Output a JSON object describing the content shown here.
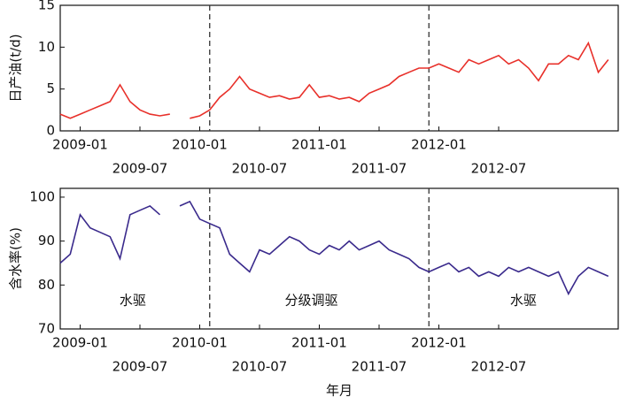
{
  "chart_data": [
    {
      "type": "line",
      "ylabel": "日产油(t/d)",
      "x": [
        "2008-11",
        "2008-12",
        "2009-01",
        "2009-02",
        "2009-03",
        "2009-04",
        "2009-05",
        "2009-06",
        "2009-07",
        "2009-08",
        "2009-09",
        "2009-10",
        "2009-11",
        "2009-12",
        "2010-01",
        "2010-02",
        "2010-03",
        "2010-04",
        "2010-05",
        "2010-06",
        "2010-07",
        "2010-08",
        "2010-09",
        "2010-10",
        "2010-11",
        "2010-12",
        "2011-01",
        "2011-02",
        "2011-03",
        "2011-04",
        "2011-05",
        "2011-06",
        "2011-07",
        "2011-08",
        "2011-09",
        "2011-10",
        "2011-11",
        "2011-12",
        "2012-01",
        "2012-02",
        "2012-03",
        "2012-04",
        "2012-05",
        "2012-06",
        "2012-07",
        "2012-08",
        "2012-09",
        "2012-10",
        "2012-11",
        "2012-12",
        "2013-01",
        "2013-02",
        "2013-03",
        "2013-04",
        "2013-05",
        "2013-06"
      ],
      "series": [
        {
          "color": "#e8302a",
          "values": [
            2.0,
            1.5,
            2.0,
            2.5,
            3.0,
            3.5,
            5.5,
            3.5,
            2.5,
            2.0,
            1.8,
            2.0,
            null,
            1.5,
            1.8,
            2.5,
            4.0,
            5.0,
            6.5,
            5.0,
            4.5,
            4.0,
            4.2,
            3.8,
            4.0,
            5.5,
            4.0,
            4.2,
            3.8,
            4.0,
            3.5,
            4.5,
            5.0,
            5.5,
            6.5,
            7.0,
            7.5,
            7.5,
            8.0,
            7.5,
            7.0,
            8.5,
            8.0,
            8.5,
            9.0,
            8.0,
            8.5,
            7.5,
            6.0,
            8.0,
            8.0,
            9.0,
            8.5,
            10.5,
            7.0,
            8.5
          ]
        }
      ],
      "xlim": [
        "2008-11",
        "2013-07"
      ],
      "xticks": [
        "2009-01",
        "2009-07",
        "2010-01",
        "2010-07",
        "2011-01",
        "2011-07",
        "2012-01",
        "2012-07"
      ],
      "ylim": [
        0,
        15
      ],
      "yticks": [
        0,
        5,
        10,
        15
      ],
      "dividers": [
        "2010-02",
        "2011-12"
      ]
    },
    {
      "type": "line",
      "ylabel": "含水率(%)",
      "xlabel": "年月",
      "x": [
        "2008-11",
        "2008-12",
        "2009-01",
        "2009-02",
        "2009-03",
        "2009-04",
        "2009-05",
        "2009-06",
        "2009-07",
        "2009-08",
        "2009-09",
        "2009-10",
        "2009-11",
        "2009-12",
        "2010-01",
        "2010-02",
        "2010-03",
        "2010-04",
        "2010-05",
        "2010-06",
        "2010-07",
        "2010-08",
        "2010-09",
        "2010-10",
        "2010-11",
        "2010-12",
        "2011-01",
        "2011-02",
        "2011-03",
        "2011-04",
        "2011-05",
        "2011-06",
        "2011-07",
        "2011-08",
        "2011-09",
        "2011-10",
        "2011-11",
        "2011-12",
        "2012-01",
        "2012-02",
        "2012-03",
        "2012-04",
        "2012-05",
        "2012-06",
        "2012-07",
        "2012-08",
        "2012-09",
        "2012-10",
        "2012-11",
        "2012-12",
        "2013-01",
        "2013-02",
        "2013-03",
        "2013-04",
        "2013-05",
        "2013-06"
      ],
      "series": [
        {
          "color": "#3a2a8c",
          "values": [
            85,
            87,
            96,
            93,
            92,
            91,
            86,
            96,
            97,
            98,
            96,
            null,
            98,
            99,
            95,
            94,
            93,
            87,
            85,
            83,
            88,
            87,
            89,
            91,
            90,
            88,
            87,
            89,
            88,
            90,
            88,
            89,
            90,
            88,
            87,
            86,
            84,
            83,
            84,
            85,
            83,
            84,
            82,
            83,
            82,
            84,
            83,
            84,
            83,
            82,
            83,
            78,
            82,
            84,
            83,
            82
          ]
        }
      ],
      "xlim": [
        "2008-11",
        "2013-07"
      ],
      "xticks": [
        "2009-01",
        "2009-07",
        "2010-01",
        "2010-07",
        "2011-01",
        "2011-07",
        "2012-01",
        "2012-07"
      ],
      "ylim": [
        70,
        102
      ],
      "yticks": [
        70,
        80,
        90,
        100
      ],
      "dividers": [
        "2010-02",
        "2011-12"
      ],
      "annotations": [
        "水驱",
        "分级调驱",
        "水驱"
      ]
    }
  ]
}
